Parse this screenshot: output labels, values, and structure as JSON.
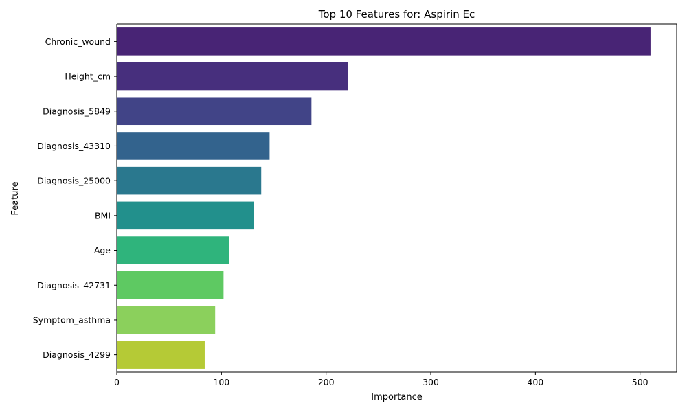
{
  "chart_data": {
    "type": "bar",
    "orientation": "horizontal",
    "title": "Top 10 Features for: Aspirin Ec",
    "xlabel": "Importance",
    "ylabel": "Feature",
    "categories": [
      "Chronic_wound",
      "Height_cm",
      "Diagnosis_5849",
      "Diagnosis_43310",
      "Diagnosis_25000",
      "BMI",
      "Age",
      "Diagnosis_42731",
      "Symptom_asthma",
      "Diagnosis_4299"
    ],
    "values": [
      510,
      221,
      186,
      146,
      138,
      131,
      107,
      102,
      94,
      84
    ],
    "colors": [
      "#482475",
      "#472f7d",
      "#414487",
      "#33638d",
      "#2a788e",
      "#22908c",
      "#2fb47c",
      "#5ec962",
      "#8bd05c",
      "#b5ca36"
    ],
    "xlim": [
      0,
      535
    ],
    "xticks": [
      0,
      100,
      200,
      300,
      400,
      500
    ],
    "grid": false,
    "legend": "none"
  }
}
